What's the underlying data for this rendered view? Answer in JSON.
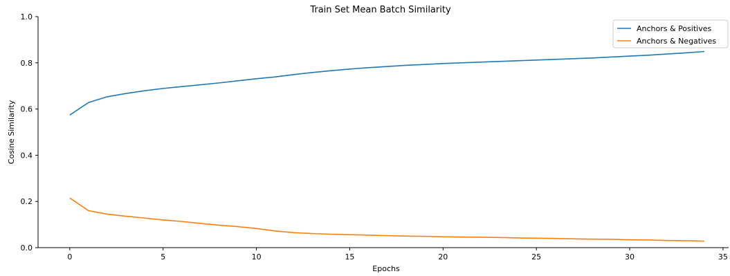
{
  "chart_data": {
    "type": "line",
    "title": "Train Set Mean Batch Similarity",
    "xlabel": "Epochs",
    "ylabel": "Cosine Similarity",
    "xlim": [
      -1.7,
      35.3
    ],
    "ylim": [
      0.0,
      1.0
    ],
    "xticks": [
      0,
      5,
      10,
      15,
      20,
      25,
      30,
      35
    ],
    "yticks": [
      0.0,
      0.2,
      0.4,
      0.6,
      0.8,
      1.0
    ],
    "grid": false,
    "legend_position": "top-right",
    "x": [
      0,
      1,
      2,
      3,
      4,
      5,
      6,
      7,
      8,
      9,
      10,
      11,
      12,
      13,
      14,
      15,
      16,
      17,
      18,
      19,
      20,
      21,
      22,
      23,
      24,
      25,
      26,
      27,
      28,
      29,
      30,
      31,
      32,
      33,
      34
    ],
    "series": [
      {
        "name": "Anchors & Positives",
        "color": "#1f77b4",
        "values": [
          0.574,
          0.628,
          0.653,
          0.667,
          0.679,
          0.689,
          0.697,
          0.705,
          0.713,
          0.722,
          0.731,
          0.739,
          0.749,
          0.758,
          0.766,
          0.773,
          0.779,
          0.784,
          0.789,
          0.793,
          0.797,
          0.8,
          0.803,
          0.806,
          0.809,
          0.812,
          0.815,
          0.818,
          0.821,
          0.825,
          0.829,
          0.833,
          0.838,
          0.843,
          0.849
        ]
      },
      {
        "name": "Anchors & Negatives",
        "color": "#ff7f0e",
        "values": [
          0.215,
          0.16,
          0.145,
          0.136,
          0.128,
          0.12,
          0.113,
          0.105,
          0.097,
          0.091,
          0.083,
          0.072,
          0.065,
          0.061,
          0.058,
          0.056,
          0.054,
          0.052,
          0.05,
          0.049,
          0.047,
          0.046,
          0.045,
          0.044,
          0.042,
          0.041,
          0.04,
          0.038,
          0.037,
          0.036,
          0.034,
          0.033,
          0.031,
          0.03,
          0.028
        ]
      }
    ]
  }
}
